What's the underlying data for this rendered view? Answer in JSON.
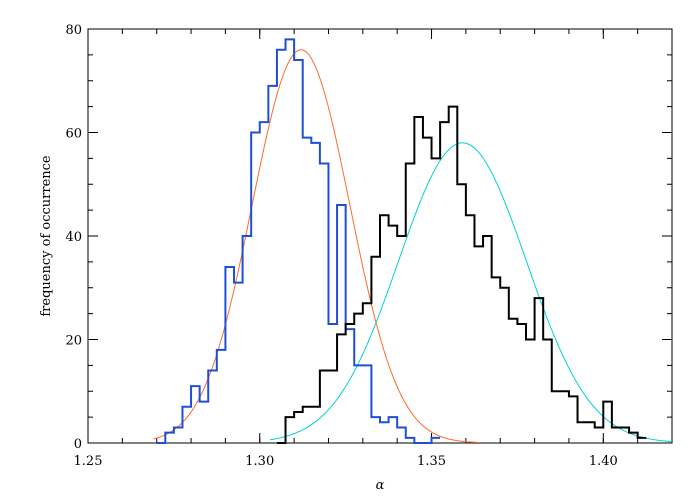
{
  "chart_data": {
    "type": "histogram",
    "title": "",
    "xlabel": "α",
    "ylabel": "frequency of occurrence",
    "xlim": [
      1.25,
      1.42
    ],
    "ylim": [
      0,
      80
    ],
    "xticks": [
      1.25,
      1.3,
      1.35,
      1.4
    ],
    "xtick_labels": [
      "1.25",
      "1.30",
      "1.35",
      "1.40"
    ],
    "yticks": [
      0,
      20,
      40,
      60,
      80
    ],
    "ytick_labels": [
      "0",
      "20",
      "40",
      "60",
      "80"
    ],
    "grid": false,
    "series": [
      {
        "kind": "step",
        "color": "#1f4fd8",
        "bin_width": 0.0025,
        "x_start": 1.27,
        "values": [
          0,
          2,
          3,
          7,
          11,
          8,
          14,
          18,
          34,
          31,
          40,
          60,
          62,
          69,
          76,
          78,
          74,
          59,
          58,
          54,
          23,
          46,
          22,
          15,
          15,
          5,
          4,
          5,
          3,
          1,
          0,
          0,
          1
        ]
      },
      {
        "kind": "step",
        "color": "#000000",
        "bin_width": 0.0025,
        "x_start": 1.305,
        "values": [
          0,
          5,
          6,
          7,
          7,
          14,
          14,
          21,
          23,
          25,
          27,
          36,
          44,
          42,
          40,
          54,
          63,
          59,
          55,
          62,
          65,
          50,
          44,
          38,
          40,
          32,
          30,
          24,
          23,
          20,
          28,
          20,
          10,
          10,
          9,
          4,
          4,
          3,
          8,
          3,
          3,
          2,
          1
        ]
      },
      {
        "kind": "gaussian",
        "color": "#ff6a2a",
        "amplitude": 76,
        "mean": 1.312,
        "sigma": 0.0142,
        "x_range": [
          1.269,
          1.364
        ]
      },
      {
        "kind": "gaussian",
        "color": "#00d2d2",
        "amplitude": 58,
        "mean": 1.359,
        "sigma": 0.0186,
        "x_range": [
          1.303,
          1.42
        ]
      }
    ]
  }
}
